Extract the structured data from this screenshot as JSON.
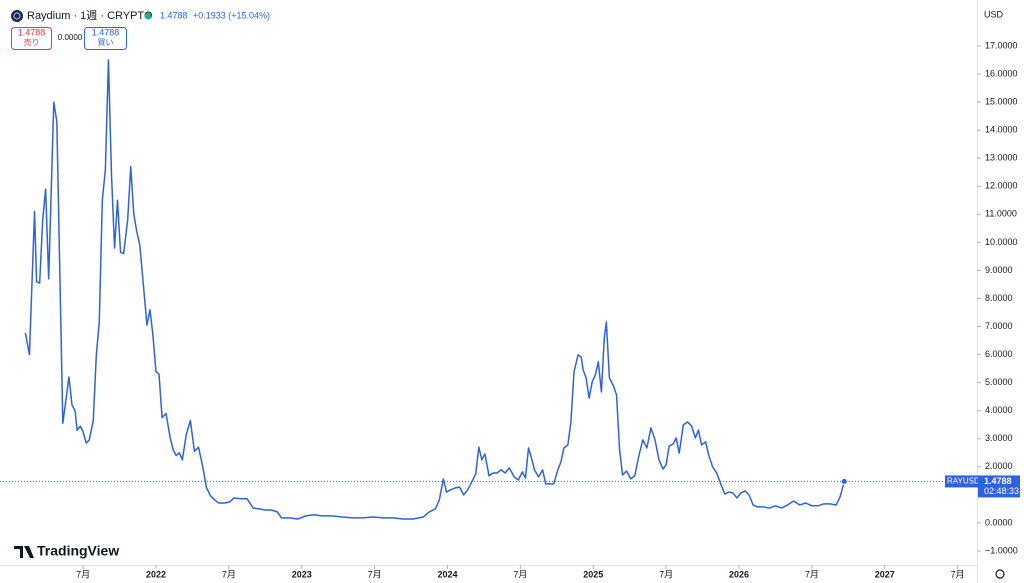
{
  "chart_data": {
    "type": "line",
    "title": "Raydium · 1週 · CRYPTO",
    "last": 1.4788,
    "change": "+0.1933 (+15.04%)",
    "sell": {
      "price": 1.4788,
      "label": "売り"
    },
    "spread": "0.0000",
    "buy": {
      "price": 1.4788,
      "label": "買い"
    },
    "currency": "USD",
    "price_tag": {
      "symbol": "RAYUSD",
      "price": 1.4788,
      "countdown": "02:48:33"
    },
    "watermark": "TradingView",
    "color": "#2f62e0",
    "grid": false,
    "xlim": [
      2020.93,
      2027.633
    ],
    "ylim": [
      -1.5,
      18.64
    ],
    "xticks": [
      {
        "value": 2021.5,
        "label": "7月"
      },
      2022,
      {
        "value": 2022.5,
        "label": "7月"
      },
      2023,
      {
        "value": 2023.5,
        "label": "7月"
      },
      2024,
      {
        "value": 2024.5,
        "label": "7月"
      },
      2025,
      {
        "value": 2025.5,
        "label": "7月"
      },
      2026,
      {
        "value": 2026.5,
        "label": "7月"
      },
      2027,
      {
        "value": 2027.5,
        "label": "7月"
      }
    ],
    "yticks": [
      {
        "value": -1,
        "label": "−1.0000"
      },
      {
        "value": 0,
        "label": "0.0000"
      },
      {
        "value": 1,
        "label": "1.0000"
      },
      {
        "value": 2,
        "label": "2.0000"
      },
      {
        "value": 3,
        "label": "3.0000"
      },
      {
        "value": 4,
        "label": "4.0000"
      },
      {
        "value": 5,
        "label": "5.0000"
      },
      {
        "value": 6,
        "label": "6.0000"
      },
      {
        "value": 7,
        "label": "7.0000"
      },
      {
        "value": 8,
        "label": "8.0000"
      },
      {
        "value": 9,
        "label": "9.0000"
      },
      {
        "value": 10,
        "label": "10.0000"
      },
      {
        "value": 11,
        "label": "11.0000"
      },
      {
        "value": 12,
        "label": "12.0000"
      },
      {
        "value": 13,
        "label": "13.0000"
      },
      {
        "value": 14,
        "label": "14.0000"
      },
      {
        "value": 15,
        "label": "15.0000"
      },
      {
        "value": 16,
        "label": "16.0000"
      },
      {
        "value": 17,
        "label": "17.0000"
      }
    ],
    "x": [
      2021.104,
      2021.132,
      2021.167,
      2021.181,
      2021.202,
      2021.223,
      2021.243,
      2021.264,
      2021.299,
      2021.32,
      2021.361,
      2021.403,
      2021.424,
      2021.445,
      2021.459,
      2021.48,
      2021.5,
      2021.521,
      2021.542,
      2021.57,
      2021.591,
      2021.611,
      2021.632,
      2021.653,
      2021.674,
      2021.695,
      2021.716,
      2021.736,
      2021.757,
      2021.778,
      2021.806,
      2021.827,
      2021.848,
      2021.868,
      2021.889,
      2021.917,
      2021.938,
      2021.959,
      2021.979,
      2022.0,
      2022.021,
      2022.042,
      2022.069,
      2022.097,
      2022.118,
      2022.139,
      2022.16,
      2022.181,
      2022.208,
      2022.236,
      2022.264,
      2022.292,
      2022.319,
      2022.347,
      2022.375,
      2022.403,
      2022.431,
      2022.472,
      2022.507,
      2022.535,
      2022.583,
      2022.625,
      2022.667,
      2022.708,
      2022.75,
      2022.792,
      2022.833,
      2022.861,
      2022.917,
      2022.972,
      2023.028,
      2023.083,
      2023.139,
      2023.208,
      2023.278,
      2023.347,
      2023.417,
      2023.486,
      2023.556,
      2023.625,
      2023.694,
      2023.764,
      2023.833,
      2023.875,
      2023.917,
      2023.944,
      2023.972,
      2023.993,
      2024.021,
      2024.056,
      2024.083,
      2024.111,
      2024.139,
      2024.167,
      2024.194,
      2024.215,
      2024.236,
      2024.257,
      2024.285,
      2024.313,
      2024.34,
      2024.368,
      2024.396,
      2024.424,
      2024.458,
      2024.486,
      2024.514,
      2024.535,
      2024.556,
      2024.576,
      2024.597,
      2024.625,
      2024.653,
      2024.674,
      2024.701,
      2024.729,
      2024.757,
      2024.778,
      2024.799,
      2024.826,
      2024.847,
      2024.868,
      2024.896,
      2024.917,
      2024.931,
      2024.951,
      2024.972,
      2024.993,
      2025.014,
      2025.035,
      2025.056,
      2025.076,
      2025.09,
      2025.111,
      2025.139,
      2025.16,
      2025.181,
      2025.201,
      2025.229,
      2025.257,
      2025.285,
      2025.313,
      2025.34,
      2025.368,
      2025.396,
      2025.424,
      2025.451,
      2025.479,
      2025.5,
      2025.521,
      2025.549,
      2025.569,
      2025.59,
      2025.618,
      2025.646,
      2025.674,
      2025.701,
      2025.722,
      2025.743,
      2025.771,
      2025.792,
      2025.819,
      2025.847,
      2025.875,
      2025.903,
      2025.931,
      2025.958,
      2025.986,
      2026.014,
      2026.042,
      2026.069,
      2026.097,
      2026.125,
      2026.167,
      2026.208,
      2026.25,
      2026.292,
      2026.333,
      2026.375,
      2026.417,
      2026.458,
      2026.5,
      2026.542,
      2026.583,
      2026.625,
      2026.667,
      2026.694,
      2026.722
    ],
    "values": [
      6.77,
      6.0,
      11.1,
      8.6,
      8.55,
      10.8,
      11.9,
      8.7,
      15.0,
      14.3,
      3.55,
      5.2,
      4.2,
      4.0,
      3.3,
      3.45,
      3.25,
      2.85,
      2.95,
      3.65,
      6.0,
      7.15,
      11.5,
      12.6,
      16.5,
      12.4,
      9.8,
      11.5,
      9.65,
      9.6,
      10.8,
      12.7,
      11.0,
      10.4,
      9.9,
      8.3,
      7.05,
      7.6,
      6.7,
      5.4,
      5.3,
      3.75,
      3.9,
      3.05,
      2.6,
      2.4,
      2.5,
      2.25,
      3.15,
      3.65,
      2.55,
      2.7,
      2.05,
      1.25,
      0.96,
      0.82,
      0.71,
      0.71,
      0.75,
      0.89,
      0.86,
      0.86,
      0.53,
      0.5,
      0.46,
      0.46,
      0.39,
      0.18,
      0.18,
      0.14,
      0.25,
      0.29,
      0.25,
      0.25,
      0.21,
      0.18,
      0.18,
      0.21,
      0.18,
      0.18,
      0.14,
      0.14,
      0.21,
      0.39,
      0.5,
      0.82,
      1.57,
      1.1,
      1.18,
      1.25,
      1.28,
      1.0,
      1.18,
      1.46,
      1.75,
      2.7,
      2.25,
      2.46,
      1.68,
      1.78,
      1.78,
      1.89,
      1.78,
      1.96,
      1.64,
      1.53,
      1.82,
      1.6,
      2.67,
      2.32,
      1.89,
      1.64,
      1.89,
      1.39,
      1.39,
      1.39,
      1.89,
      2.17,
      2.67,
      2.78,
      3.6,
      5.38,
      5.99,
      5.92,
      5.45,
      5.17,
      4.45,
      5.03,
      5.27,
      5.74,
      4.67,
      6.59,
      7.16,
      5.17,
      4.88,
      4.56,
      2.6,
      1.71,
      1.85,
      1.57,
      1.68,
      2.39,
      2.96,
      2.67,
      3.39,
      2.96,
      2.25,
      1.92,
      2.07,
      2.74,
      2.82,
      3.03,
      2.49,
      3.49,
      3.6,
      3.46,
      3.03,
      3.31,
      2.78,
      2.89,
      2.42,
      2.0,
      1.78,
      1.39,
      1.03,
      1.1,
      1.07,
      0.89,
      1.07,
      1.14,
      1.0,
      0.64,
      0.57,
      0.57,
      0.53,
      0.61,
      0.53,
      0.64,
      0.78,
      0.64,
      0.71,
      0.61,
      0.61,
      0.68,
      0.68,
      0.64,
      0.93,
      1.4788
    ]
  }
}
